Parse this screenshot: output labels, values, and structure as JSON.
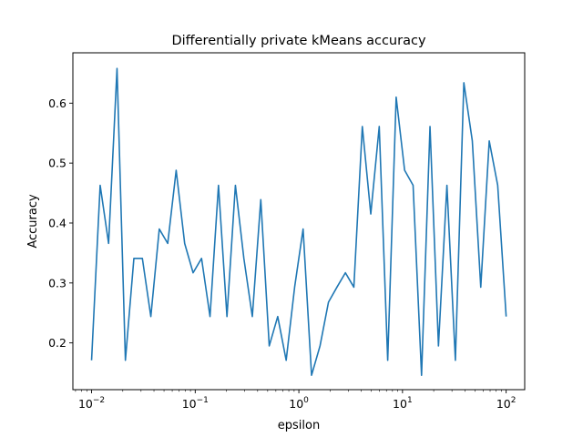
{
  "chart_data": {
    "type": "line",
    "title": "Differentially private kMeans accuracy",
    "xlabel": "epsilon",
    "ylabel": "Accuracy",
    "xscale": "log",
    "xlim": [
      0.0066,
      151
    ],
    "ylim": [
      0.122,
      0.684
    ],
    "grid": false,
    "color": "#1f77b4",
    "xticks": [
      {
        "value": 0.01,
        "base": "10",
        "exp": "−2"
      },
      {
        "value": 0.1,
        "base": "10",
        "exp": "−1"
      },
      {
        "value": 1,
        "base": "10",
        "exp": "0"
      },
      {
        "value": 10,
        "base": "10",
        "exp": "1"
      },
      {
        "value": 100,
        "base": "10",
        "exp": "2"
      }
    ],
    "yticks": [
      "0.2",
      "0.3",
      "0.4",
      "0.5",
      "0.6"
    ],
    "series": [
      {
        "x": [
          0.01,
          0.0121,
          0.0146,
          0.0176,
          0.0212,
          0.0256,
          0.0309,
          0.0373,
          0.045,
          0.0543,
          0.0655,
          0.0791,
          0.0954,
          0.1151,
          0.1389,
          0.1677,
          0.2024,
          0.2442,
          0.2947,
          0.3556,
          0.4292,
          0.5179,
          0.6251,
          0.7543,
          0.9103,
          1.0985,
          1.3257,
          1.5999,
          1.9307,
          2.33,
          2.8118,
          3.3932,
          4.0949,
          4.9417,
          5.9636,
          7.1969,
          8.6851,
          10.4811,
          12.6486,
          15.2642,
          18.4207,
          22.23,
          26.827,
          32.3746,
          39.0694,
          47.1487,
          56.8987,
          68.6649,
          82.8643,
          100
        ],
        "y": [
          0.171,
          0.463,
          0.366,
          0.658,
          0.171,
          0.341,
          0.341,
          0.244,
          0.39,
          0.366,
          0.488,
          0.366,
          0.317,
          0.341,
          0.244,
          0.463,
          0.244,
          0.463,
          0.341,
          0.244,
          0.439,
          0.195,
          0.244,
          0.171,
          0.293,
          0.39,
          0.146,
          0.195,
          0.268,
          0.293,
          0.317,
          0.293,
          0.561,
          0.415,
          0.561,
          0.171,
          0.61,
          0.488,
          0.463,
          0.146,
          0.561,
          0.195,
          0.463,
          0.171,
          0.634,
          0.537,
          0.293,
          0.537,
          0.463,
          0.244
        ]
      }
    ]
  }
}
